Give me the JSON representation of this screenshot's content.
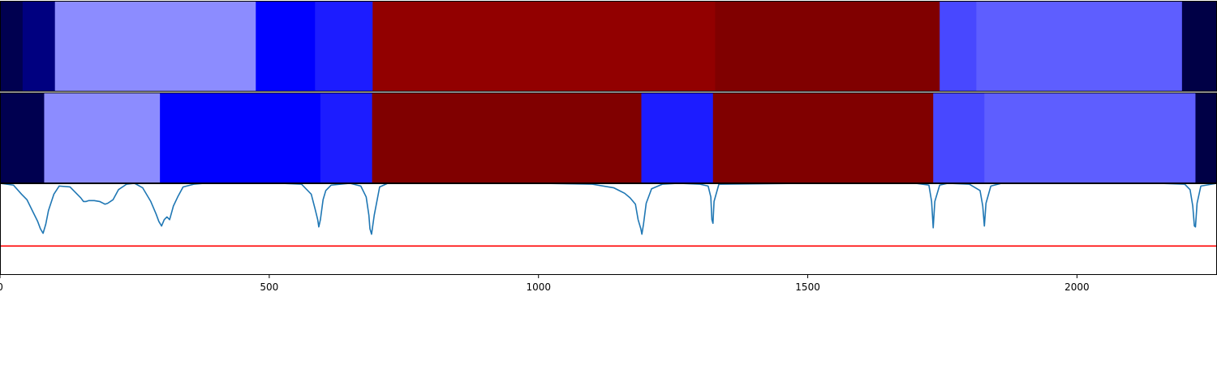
{
  "chart_data": [
    {
      "type": "heatmap",
      "panel": "segments-top",
      "xlim": [
        0,
        2260
      ],
      "segments": [
        {
          "start": 0,
          "end": 42,
          "color": "#000050"
        },
        {
          "start": 42,
          "end": 102,
          "color": "#000080"
        },
        {
          "start": 102,
          "end": 475,
          "color": "#8c8cff"
        },
        {
          "start": 475,
          "end": 585,
          "color": "#0000ff"
        },
        {
          "start": 585,
          "end": 692,
          "color": "#1c1cff"
        },
        {
          "start": 692,
          "end": 1328,
          "color": "#920000"
        },
        {
          "start": 1328,
          "end": 1745,
          "color": "#800000"
        },
        {
          "start": 1745,
          "end": 1813,
          "color": "#4848ff"
        },
        {
          "start": 1813,
          "end": 2195,
          "color": "#5e5eff"
        },
        {
          "start": 2195,
          "end": 2260,
          "color": "#000046"
        }
      ]
    },
    {
      "type": "heatmap",
      "panel": "segments-bottom",
      "xlim": [
        0,
        2260
      ],
      "segments": [
        {
          "start": 0,
          "end": 82,
          "color": "#000050"
        },
        {
          "start": 82,
          "end": 297,
          "color": "#8c8cff"
        },
        {
          "start": 297,
          "end": 595,
          "color": "#0000ff"
        },
        {
          "start": 595,
          "end": 691,
          "color": "#1c1cff"
        },
        {
          "start": 691,
          "end": 1191,
          "color": "#800000"
        },
        {
          "start": 1191,
          "end": 1324,
          "color": "#1c1cff"
        },
        {
          "start": 1324,
          "end": 1733,
          "color": "#800000"
        },
        {
          "start": 1733,
          "end": 1828,
          "color": "#4848ff"
        },
        {
          "start": 1828,
          "end": 2220,
          "color": "#5e5eff"
        },
        {
          "start": 2220,
          "end": 2260,
          "color": "#000046"
        }
      ]
    },
    {
      "type": "line",
      "panel": "signal",
      "xlim": [
        0,
        2260
      ],
      "ylim": [
        0,
        1
      ],
      "xticks": [
        0,
        500,
        1000,
        1500,
        2000
      ],
      "xtick_labels": [
        "0",
        "500",
        "1000",
        "1500",
        "2000"
      ],
      "threshold": {
        "y": 0.31,
        "color": "#ff0000"
      },
      "series_color": "#1f77b4",
      "series": [
        {
          "x": [
            0,
            25,
            40,
            50,
            60,
            70,
            75,
            80,
            85,
            90,
            100,
            110,
            130,
            150,
            155,
            160,
            165,
            175,
            185,
            195,
            200,
            210,
            220,
            235,
            250,
            265,
            280,
            290,
            295,
            300,
            305,
            310,
            315,
            322,
            330,
            340,
            360,
            380,
            420,
            520,
            560,
            578,
            585,
            590,
            592,
            595,
            600,
            605,
            615,
            650,
            670,
            680,
            685,
            687,
            690,
            695,
            705,
            720,
            800,
            1000,
            1100,
            1140,
            1160,
            1170,
            1180,
            1185,
            1190,
            1192,
            1195,
            1200,
            1210,
            1230,
            1260,
            1300,
            1315,
            1320,
            1322,
            1324,
            1326,
            1335,
            1500,
            1700,
            1725,
            1730,
            1733,
            1736,
            1745,
            1760,
            1800,
            1820,
            1825,
            1828,
            1831,
            1840,
            1860,
            1900,
            2000,
            2150,
            2200,
            2210,
            2215,
            2218,
            2220,
            2223,
            2230,
            2260
          ],
          "y": [
            1.0,
            0.98,
            0.88,
            0.82,
            0.7,
            0.58,
            0.5,
            0.45,
            0.55,
            0.7,
            0.88,
            0.97,
            0.96,
            0.84,
            0.8,
            0.8,
            0.81,
            0.81,
            0.8,
            0.77,
            0.78,
            0.82,
            0.93,
            0.99,
            1.0,
            0.95,
            0.8,
            0.66,
            0.58,
            0.53,
            0.6,
            0.63,
            0.6,
            0.75,
            0.85,
            0.96,
            0.99,
            1.0,
            1.0,
            1.0,
            0.99,
            0.88,
            0.72,
            0.6,
            0.52,
            0.6,
            0.82,
            0.92,
            0.98,
            1.0,
            0.97,
            0.85,
            0.65,
            0.5,
            0.44,
            0.65,
            0.96,
            1.0,
            1.0,
            1.0,
            0.99,
            0.95,
            0.89,
            0.84,
            0.77,
            0.6,
            0.5,
            0.44,
            0.55,
            0.78,
            0.94,
            0.99,
            1.0,
            0.99,
            0.97,
            0.85,
            0.6,
            0.56,
            0.8,
            0.99,
            1.0,
            1.0,
            0.98,
            0.8,
            0.51,
            0.8,
            0.98,
            1.0,
            0.99,
            0.92,
            0.75,
            0.53,
            0.78,
            0.97,
            1.0,
            1.0,
            1.0,
            1.0,
            0.99,
            0.93,
            0.75,
            0.53,
            0.52,
            0.78,
            0.97,
            1.0
          ]
        }
      ]
    }
  ]
}
